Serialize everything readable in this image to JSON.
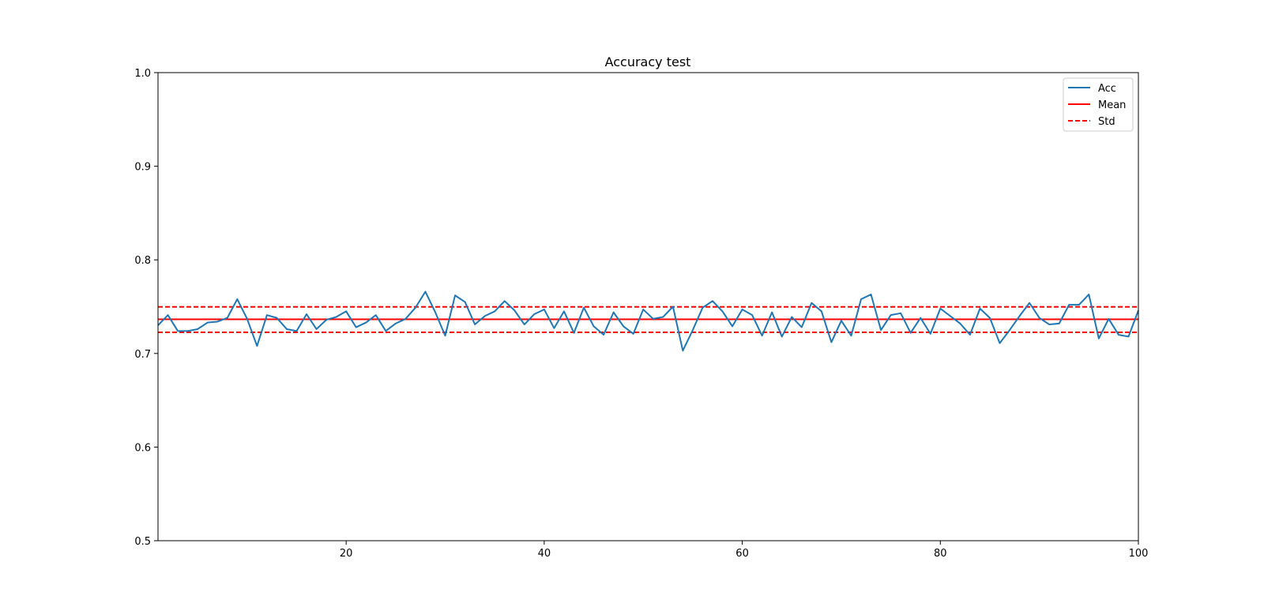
{
  "chart_data": {
    "type": "line",
    "title": "Accuracy test",
    "xlabel": "",
    "ylabel": "",
    "xlim": [
      1,
      100
    ],
    "ylim": [
      0.5,
      1.0
    ],
    "xticks": [
      20,
      40,
      60,
      80,
      100
    ],
    "xtick_labels": [
      "20",
      "40",
      "60",
      "80",
      "100"
    ],
    "yticks": [
      0.5,
      0.6,
      0.7,
      0.8,
      0.9,
      1.0
    ],
    "ytick_labels": [
      "0.5",
      "0.6",
      "0.7",
      "0.8",
      "0.9",
      "1.0"
    ],
    "grid": false,
    "legend": {
      "placement": "upper right",
      "entries": [
        "Acc",
        "Mean",
        "Std"
      ]
    },
    "series": [
      {
        "name": "Acc",
        "style": "solid",
        "color": "#1f77b4",
        "x": [
          1,
          2,
          3,
          4,
          5,
          6,
          7,
          8,
          9,
          10,
          11,
          12,
          13,
          14,
          15,
          16,
          17,
          18,
          19,
          20,
          21,
          22,
          23,
          24,
          25,
          26,
          27,
          28,
          29,
          30,
          31,
          32,
          33,
          34,
          35,
          36,
          37,
          38,
          39,
          40,
          41,
          42,
          43,
          44,
          45,
          46,
          47,
          48,
          49,
          50,
          51,
          52,
          53,
          54,
          55,
          56,
          57,
          58,
          59,
          60,
          61,
          62,
          63,
          64,
          65,
          66,
          67,
          68,
          69,
          70,
          71,
          72,
          73,
          74,
          75,
          76,
          77,
          78,
          79,
          80,
          81,
          82,
          83,
          84,
          85,
          86,
          87,
          88,
          89,
          90,
          91,
          92,
          93,
          94,
          95,
          96,
          97,
          98,
          99,
          100
        ],
        "y": [
          0.73,
          0.741,
          0.724,
          0.724,
          0.726,
          0.733,
          0.734,
          0.738,
          0.758,
          0.737,
          0.708,
          0.741,
          0.738,
          0.726,
          0.724,
          0.742,
          0.726,
          0.736,
          0.739,
          0.745,
          0.728,
          0.733,
          0.741,
          0.724,
          0.732,
          0.737,
          0.749,
          0.766,
          0.744,
          0.719,
          0.762,
          0.755,
          0.731,
          0.74,
          0.745,
          0.756,
          0.746,
          0.731,
          0.742,
          0.747,
          0.727,
          0.745,
          0.722,
          0.749,
          0.729,
          0.72,
          0.744,
          0.729,
          0.721,
          0.747,
          0.737,
          0.739,
          0.75,
          0.703,
          0.725,
          0.749,
          0.756,
          0.745,
          0.729,
          0.747,
          0.741,
          0.719,
          0.744,
          0.718,
          0.739,
          0.728,
          0.754,
          0.745,
          0.712,
          0.735,
          0.719,
          0.758,
          0.763,
          0.725,
          0.741,
          0.743,
          0.722,
          0.738,
          0.721,
          0.748,
          0.74,
          0.732,
          0.72,
          0.748,
          0.738,
          0.711,
          0.725,
          0.74,
          0.754,
          0.738,
          0.731,
          0.732,
          0.752,
          0.752,
          0.763,
          0.716,
          0.737,
          0.72,
          0.718,
          0.746
        ]
      },
      {
        "name": "Mean",
        "style": "solid",
        "color": "#ff0000",
        "value": 0.7365
      },
      {
        "name": "Std",
        "style": "dashed",
        "color": "#ff0000",
        "values": [
          0.7498,
          0.7226
        ]
      }
    ]
  }
}
